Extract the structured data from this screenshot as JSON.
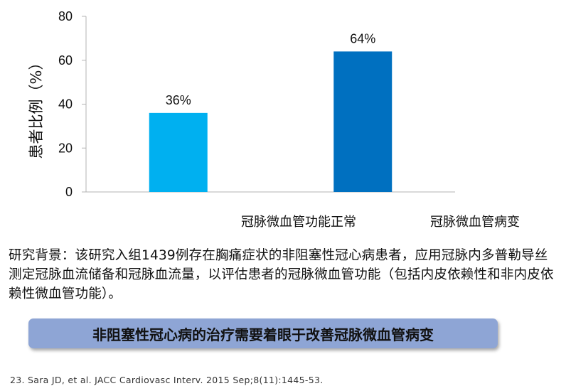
{
  "chart_data": {
    "type": "bar",
    "categories": [
      "冠脉微血管功能正常",
      "冠脉微血管病变"
    ],
    "values": [
      36,
      64
    ],
    "data_labels": [
      "36%",
      "64%"
    ],
    "colors": [
      "#00b0f0",
      "#0070c0"
    ],
    "ylabel": "患者比例（%）",
    "xlabel": "",
    "title": "",
    "ylim": [
      0,
      80
    ],
    "yticks": [
      0,
      20,
      40,
      60,
      80
    ],
    "grid": false
  },
  "background_text": "研究背景：该研究入组1439例存在胸痛症状的非阻塞性冠心病患者，应用冠脉内多普勒导丝测定冠脉血流储备和冠脉血流量，以评估患者的冠脉微血管功能（包括内皮依赖性和非内皮依赖性微血管功能）。",
  "banner_text": "非阻塞性冠心病的治疗需要着眼于改善冠脉微血管病变",
  "reference": "23. Sara JD, et al. JACC Cardiovasc Interv. 2015 Sep;8(11):1445-53."
}
